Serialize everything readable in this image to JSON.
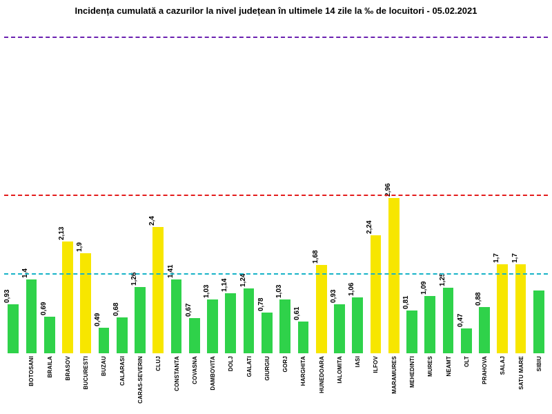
{
  "chart": {
    "type": "bar",
    "title": "Incidența cumulată a cazurilor la nivel județean în ultimele 14 zile   la ‰ de locuitori  - 05.02.2021",
    "title_fontsize": 13,
    "title_fontweight": 700,
    "background_color": "#ffffff",
    "ylim": [
      0,
      6.2
    ],
    "label_fontsize": 10,
    "xlabel_fontsize": 8,
    "bar_width_ratio": 0.6,
    "thresholds": [
      {
        "value": 6.0,
        "color": "#6a1fb0",
        "dash": "10,8",
        "width": 2
      },
      {
        "value": 3.0,
        "color": "#e31b1b",
        "dash": "10,8",
        "width": 2
      },
      {
        "value": 1.5,
        "color": "#16b3c7",
        "dash": "10,8",
        "width": 2
      }
    ],
    "color_below": "#2fd24a",
    "color_above": "#f7e600",
    "color_threshold_for_yellow": 1.5,
    "categories": [
      "—",
      "BOTOSANI",
      "BRAILA",
      "BRASOV",
      "BUCURESTI",
      "BUZAU",
      "CALARASI",
      "CARAS-SEVERIN",
      "CLUJ",
      "CONSTANTA",
      "COVASNA",
      "DAMBOVITA",
      "DOLJ",
      "GALATI",
      "GIURGIU",
      "GORJ",
      "HARGHITA",
      "HUNEDOARA",
      "IALOMITA",
      "IASI",
      "ILFOV",
      "MARAMURES",
      "MEHEDINTI",
      "MURES",
      "NEAMT",
      "OLT",
      "PRAHOVA",
      "SALAJ",
      "SATU MARE",
      "SIBIU"
    ],
    "values": [
      0.93,
      1.4,
      0.69,
      2.13,
      1.9,
      0.49,
      0.68,
      1.26,
      2.4,
      1.41,
      0.67,
      1.03,
      1.14,
      1.24,
      0.78,
      1.03,
      0.61,
      1.68,
      0.93,
      1.06,
      2.24,
      2.96,
      0.81,
      1.09,
      1.25,
      0.47,
      0.88,
      1.7,
      1.7,
      1.2
    ],
    "value_labels": [
      "0,93",
      "1,4",
      "0,69",
      "2,13",
      "1,9",
      "0,49",
      "0,68",
      "1,26",
      "2,4",
      "1,41",
      "0,67",
      "1,03",
      "1,14",
      "1,24",
      "0,78",
      "1,03",
      "0,61",
      "1,68",
      "0,93",
      "1,06",
      "2,24",
      "2,96",
      "0,81",
      "1,09",
      "1,25",
      "0,47",
      "0,88",
      "1,7",
      "1,7",
      ""
    ]
  }
}
